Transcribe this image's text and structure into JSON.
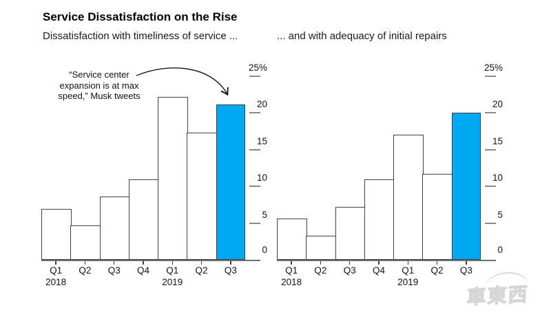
{
  "header": {
    "title": "Service Dissatisfaction on the Rise",
    "subtitle_left": "Dissatisfaction with timeliness of service ...",
    "subtitle_right": "... and with adequacy of initial repairs"
  },
  "annotation": {
    "lines": [
      "“Service center",
      "expansion is at max",
      "speed,” Musk tweets"
    ]
  },
  "colors": {
    "highlight_blue": "#00aaf2",
    "bar_fill": "#ffffff",
    "bar_outline": "#404040",
    "axis_gray": "#8a8a8a",
    "baseline_gray": "#6f6f6f",
    "text_black": "#141414",
    "watermark_gray": "#d0d0d0"
  },
  "watermark": {
    "text": "車東西"
  },
  "chart_data": [
    {
      "type": "bar",
      "title": "Dissatisfaction with timeliness of service ...",
      "categories": [
        "Q1 2018",
        "Q2 2018",
        "Q3 2018",
        "Q4 2018",
        "Q1 2019",
        "Q2 2019",
        "Q3 2019"
      ],
      "quarter_labels": [
        "Q1",
        "Q2",
        "Q3",
        "Q4",
        "Q1",
        "Q2",
        "Q3"
      ],
      "year_labels": [
        {
          "index": 0,
          "label": "2018"
        },
        {
          "index": 4,
          "label": "2019"
        }
      ],
      "values": [
        6.9,
        4.7,
        8.6,
        11.0,
        22.2,
        17.3,
        21.2
      ],
      "unit": "%",
      "highlight_index": 6,
      "ylim": [
        0,
        25
      ],
      "yticks": [
        0,
        5,
        10,
        15,
        20,
        25
      ],
      "ytick_labels": [
        "0",
        "5",
        "10",
        "15",
        "20",
        "25%"
      ],
      "grid": false,
      "legend": "none",
      "annotation": "“Service center expansion is at max speed,” Musk tweets (arrow points to highlighted Q3 2019 bar)"
    },
    {
      "type": "bar",
      "title": "... and with adequacy of initial repairs",
      "categories": [
        "Q1 2018",
        "Q2 2018",
        "Q3 2018",
        "Q4 2018",
        "Q1 2019",
        "Q2 2019",
        "Q3 2019"
      ],
      "quarter_labels": [
        "Q1",
        "Q2",
        "Q3",
        "Q4",
        "Q1",
        "Q2",
        "Q3"
      ],
      "year_labels": [
        {
          "index": 0,
          "label": "2018"
        },
        {
          "index": 4,
          "label": "2019"
        }
      ],
      "values": [
        5.6,
        3.3,
        7.2,
        11.0,
        17.0,
        11.7,
        20.0
      ],
      "unit": "%",
      "highlight_index": 6,
      "ylim": [
        0,
        25
      ],
      "yticks": [
        0,
        5,
        10,
        15,
        20,
        25
      ],
      "ytick_labels": [
        "0",
        "5",
        "10",
        "15",
        "20",
        "25%"
      ],
      "grid": false,
      "legend": "none"
    }
  ]
}
